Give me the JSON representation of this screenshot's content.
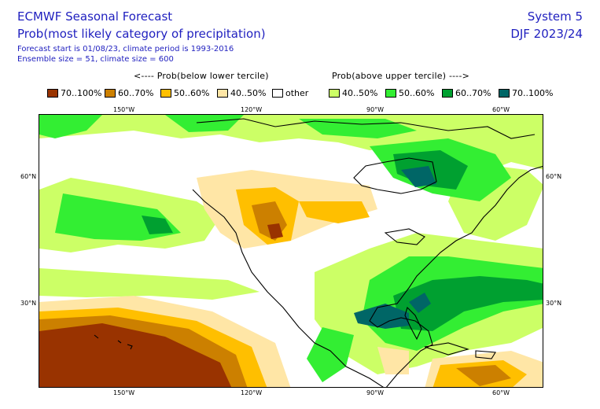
{
  "header": {
    "title": "ECMWF Seasonal Forecast",
    "subtitle": "Prob(most likely category of precipitation)",
    "forecast_info": "Forecast start is 01/08/23, climate period is 1993-2016",
    "ensemble_info": "Ensemble size = 51, climate size = 600",
    "system": "System 5",
    "period": "DJF 2023/24"
  },
  "legend": {
    "below_header": "<---- Prob(below lower tercile)",
    "above_header": "Prob(above upper tercile) ---->",
    "items": [
      {
        "label": "70..100%",
        "color": "#993300"
      },
      {
        "label": "60..70%",
        "color": "#cc8000"
      },
      {
        "label": "50..60%",
        "color": "#ffbf00"
      },
      {
        "label": "40..50%",
        "color": "#ffe6a6"
      },
      {
        "label": "other",
        "color": "#ffffff"
      },
      {
        "label": "40..50%",
        "color": "#ccff66"
      },
      {
        "label": "50..60%",
        "color": "#33ee33"
      },
      {
        "label": "60..70%",
        "color": "#00a030"
      },
      {
        "label": "70..100%",
        "color": "#006666"
      }
    ]
  },
  "axes": {
    "top_lon": [
      "150°W",
      "120°W",
      "90°W",
      "60°W"
    ],
    "bottom_lon": [
      "150°W",
      "120°W",
      "90°W",
      "60°W"
    ],
    "left_lat": [
      "60°N",
      "30°N"
    ],
    "right_lat": [
      "60°N",
      "30°N"
    ]
  }
}
